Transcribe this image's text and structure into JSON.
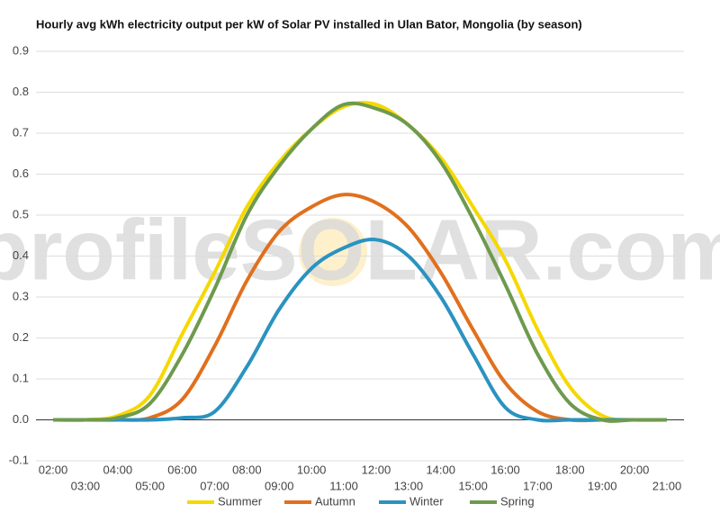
{
  "chart_data": {
    "type": "line",
    "title": "Hourly avg kWh electricity output per kW of Solar PV installed in Ulan Bator, Mongolia (by season)",
    "watermark": "profileSOLAR.com",
    "categories": [
      "02:00",
      "03:00",
      "04:00",
      "05:00",
      "06:00",
      "07:00",
      "08:00",
      "09:00",
      "10:00",
      "11:00",
      "12:00",
      "13:00",
      "14:00",
      "15:00",
      "16:00",
      "17:00",
      "18:00",
      "19:00",
      "20:00",
      "21:00"
    ],
    "series": [
      {
        "name": "Summer",
        "color": "#f5d800",
        "values": [
          0,
          0,
          0.01,
          0.06,
          0.21,
          0.36,
          0.52,
          0.63,
          0.71,
          0.765,
          0.77,
          0.72,
          0.64,
          0.52,
          0.39,
          0.22,
          0.08,
          0.01,
          0,
          0
        ]
      },
      {
        "name": "Autumn",
        "color": "#e0701e",
        "values": [
          0,
          0,
          0,
          0.005,
          0.05,
          0.18,
          0.34,
          0.46,
          0.52,
          0.55,
          0.53,
          0.47,
          0.36,
          0.22,
          0.09,
          0.02,
          0,
          0,
          0,
          0
        ]
      },
      {
        "name": "Winter",
        "color": "#2a93c0",
        "values": [
          0,
          0,
          0,
          0,
          0.005,
          0.02,
          0.13,
          0.27,
          0.37,
          0.42,
          0.44,
          0.4,
          0.3,
          0.16,
          0.03,
          0,
          0,
          0,
          0,
          0
        ]
      },
      {
        "name": "Spring",
        "color": "#6e9a4e",
        "values": [
          0,
          0,
          0.005,
          0.04,
          0.16,
          0.32,
          0.5,
          0.62,
          0.71,
          0.77,
          0.76,
          0.72,
          0.63,
          0.49,
          0.33,
          0.16,
          0.04,
          0,
          0,
          0
        ]
      }
    ],
    "ylim": [
      -0.1,
      0.9
    ],
    "yticks": [
      -0.1,
      {
        "value": 0,
        "label": "0.0"
      },
      0.1,
      0.2,
      0.3,
      0.4,
      0.5,
      0.6,
      0.7,
      0.8,
      0.9
    ],
    "grid": true,
    "legend": "bottom"
  }
}
